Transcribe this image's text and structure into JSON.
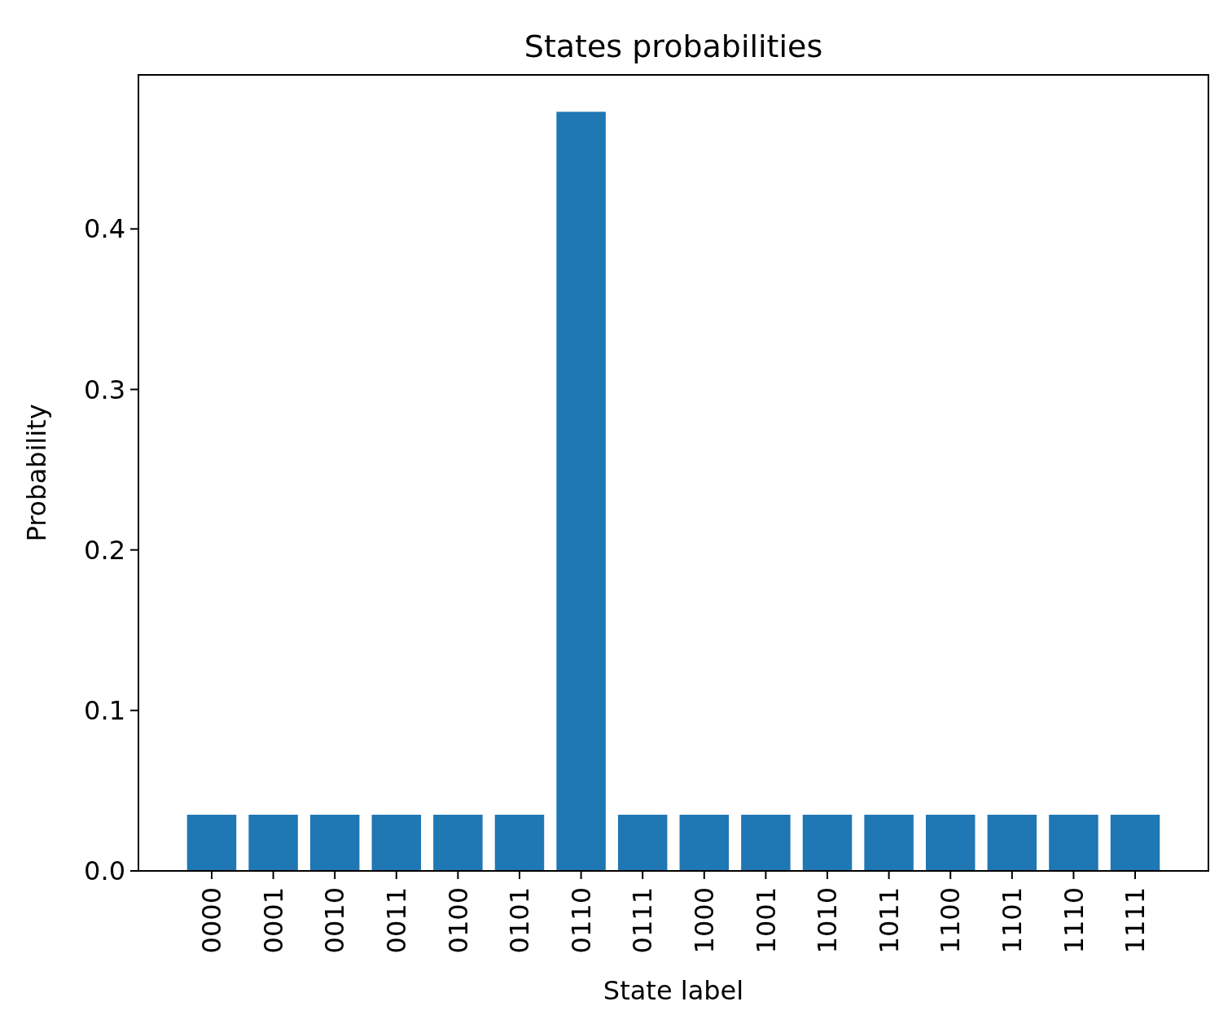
{
  "chart_data": {
    "type": "bar",
    "title": "States probabilities",
    "xlabel": "State label",
    "ylabel": "Probability",
    "categories": [
      "0000",
      "0001",
      "0010",
      "0011",
      "0100",
      "0101",
      "0110",
      "0111",
      "1000",
      "1001",
      "1010",
      "1011",
      "1100",
      "1101",
      "1110",
      "1111"
    ],
    "values": [
      0.035,
      0.035,
      0.035,
      0.035,
      0.035,
      0.035,
      0.473,
      0.035,
      0.035,
      0.035,
      0.035,
      0.035,
      0.035,
      0.035,
      0.035,
      0.035
    ],
    "color": "#1f77b4",
    "ylim": [
      0,
      0.496
    ],
    "yticks": [
      {
        "value": 0,
        "label": "0.0"
      },
      0.1,
      0.2,
      0.3,
      0.4
    ],
    "grid": false
  }
}
